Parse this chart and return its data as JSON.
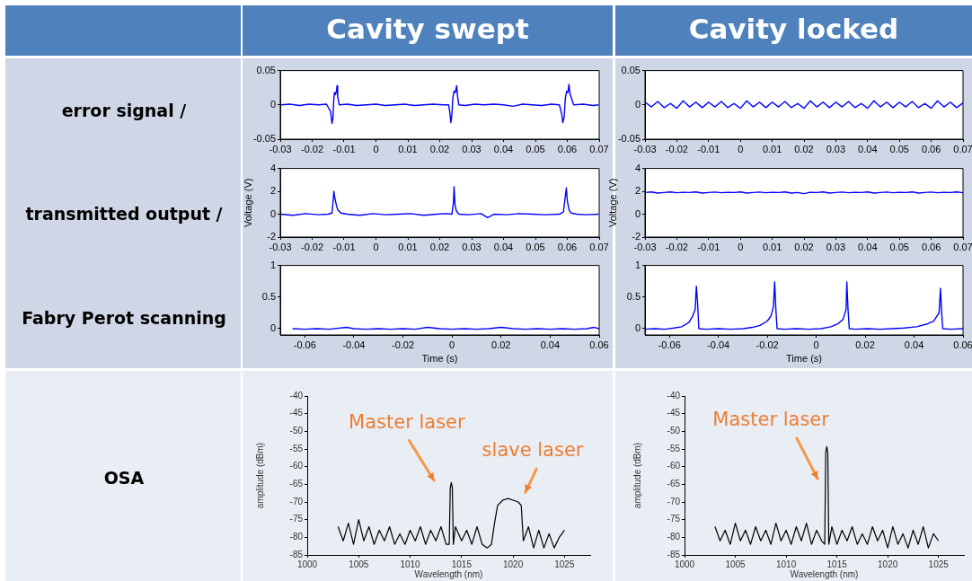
{
  "chart_data": [
    {
      "type": "other",
      "annotations": [
        "Cavity swept",
        "Cavity locked",
        "error signal /",
        "transmitted output /",
        "Fabry Perot scanning",
        "OSA"
      ]
    },
    {
      "type": "line",
      "color": "#0000ff",
      "xlim": [
        -0.03,
        0.07
      ],
      "xticks": [
        -0.03,
        -0.02,
        -0.01,
        0,
        0.01,
        0.02,
        0.03,
        0.04,
        0.05,
        0.06,
        0.07
      ],
      "ylim": [
        -0.05,
        0.05
      ],
      "yticks": [
        -0.05,
        0,
        0.05
      ],
      "x": [
        -0.0298,
        -0.027,
        -0.024,
        -0.021,
        -0.018,
        -0.0155,
        -0.0142,
        -0.0138,
        -0.0135,
        -0.0132,
        -0.013,
        -0.0127,
        -0.0124,
        -0.0122,
        -0.012,
        -0.0115,
        -0.009,
        -0.006,
        -0.003,
        0,
        0.003,
        0.006,
        0.009,
        0.012,
        0.015,
        0.018,
        0.021,
        0.0228,
        0.0232,
        0.0235,
        0.0238,
        0.0241,
        0.0245,
        0.0249,
        0.0253,
        0.0256,
        0.026,
        0.028,
        0.031,
        0.034,
        0.037,
        0.04,
        0.043,
        0.046,
        0.049,
        0.052,
        0.055,
        0.0575,
        0.0582,
        0.0586,
        0.059,
        0.0594,
        0.0598,
        0.0602,
        0.0605,
        0.0609,
        0.062,
        0.065,
        0.068,
        0.0698
      ],
      "values": [
        0,
        0.001,
        -0.001,
        0.001,
        0,
        0.001,
        -0.01,
        -0.027,
        -0.02,
        0.01,
        0.018,
        0.015,
        0.02,
        0.028,
        0.012,
        0,
        0.001,
        -0.001,
        0,
        0.001,
        -0.001,
        0,
        0.001,
        -0.001,
        0,
        0.001,
        0,
        0,
        -0.012,
        -0.026,
        -0.015,
        0.01,
        0.02,
        0.018,
        0.028,
        0.012,
        0,
        -0.001,
        0.001,
        0,
        0.001,
        0,
        -0.002,
        0.001,
        0,
        -0.001,
        0.001,
        0,
        -0.012,
        -0.026,
        -0.018,
        0.01,
        0.02,
        0.018,
        0.03,
        0.015,
        0,
        0.001,
        -0.001,
        0
      ]
    },
    {
      "type": "line",
      "color": "#0000ff",
      "xlim": [
        -0.03,
        0.07
      ],
      "xticks": [
        -0.03,
        -0.02,
        -0.01,
        0,
        0.01,
        0.02,
        0.03,
        0.04,
        0.05,
        0.06,
        0.07
      ],
      "ylim": [
        -0.05,
        0.05
      ],
      "yticks": [
        -0.05,
        0,
        0.05
      ],
      "x": [
        -0.03,
        -0.028,
        -0.026,
        -0.024,
        -0.022,
        -0.02,
        -0.018,
        -0.016,
        -0.014,
        -0.012,
        -0.01,
        -0.008,
        -0.006,
        -0.004,
        -0.002,
        0,
        0.002,
        0.004,
        0.006,
        0.008,
        0.01,
        0.012,
        0.014,
        0.016,
        0.018,
        0.02,
        0.022,
        0.024,
        0.026,
        0.028,
        0.03,
        0.032,
        0.034,
        0.036,
        0.038,
        0.04,
        0.042,
        0.044,
        0.046,
        0.048,
        0.05,
        0.052,
        0.054,
        0.056,
        0.058,
        0.06,
        0.062,
        0.064,
        0.066,
        0.068,
        0.07
      ],
      "values": [
        0.004,
        -0.003,
        0.005,
        -0.004,
        0.002,
        -0.005,
        0.006,
        -0.003,
        0.004,
        -0.004,
        0.004,
        -0.003,
        0.005,
        -0.004,
        0.002,
        -0.005,
        0.006,
        -0.003,
        0.004,
        -0.004,
        0.004,
        -0.003,
        0.005,
        -0.004,
        0.002,
        -0.005,
        0.006,
        -0.003,
        0.004,
        -0.004,
        0.004,
        -0.003,
        0.005,
        -0.004,
        0.002,
        -0.005,
        0.006,
        -0.003,
        0.004,
        -0.004,
        0.004,
        -0.003,
        0.005,
        -0.004,
        0.002,
        -0.005,
        0.006,
        -0.003,
        0.004,
        -0.004,
        0.003
      ]
    },
    {
      "type": "line",
      "color": "#0000ff",
      "ylabel": "Voltage (V)",
      "xlim": [
        -0.03,
        0.07
      ],
      "xticks": [
        -0.03,
        -0.02,
        -0.01,
        0,
        0.01,
        0.02,
        0.03,
        0.04,
        0.05,
        0.06,
        0.07
      ],
      "ylim": [
        -2,
        4
      ],
      "yticks": [
        -2,
        0,
        2,
        4
      ],
      "x": [
        -0.0298,
        -0.026,
        -0.022,
        -0.018,
        -0.015,
        -0.0138,
        -0.0134,
        -0.0132,
        -0.013,
        -0.0125,
        -0.012,
        -0.011,
        -0.009,
        -0.005,
        -0.001,
        0.003,
        0.007,
        0.011,
        0.015,
        0.019,
        0.022,
        0.0238,
        0.0243,
        0.0245,
        0.0248,
        0.0252,
        0.026,
        0.029,
        0.033,
        0.035,
        0.037,
        0.041,
        0.045,
        0.049,
        0.053,
        0.0575,
        0.0588,
        0.0593,
        0.0597,
        0.06,
        0.0605,
        0.0612,
        0.063,
        0.066,
        0.0698
      ],
      "values": [
        0,
        -0.1,
        0.05,
        -0.05,
        0,
        0.1,
        1.2,
        2.0,
        1.6,
        0.9,
        0.4,
        0.1,
        0,
        -0.1,
        0.05,
        -0.05,
        0,
        0.05,
        -0.1,
        0,
        0.05,
        0,
        1.0,
        2.4,
        0.8,
        0.3,
        0,
        -0.05,
        0.05,
        -0.3,
        0,
        -0.05,
        0.05,
        0,
        -0.05,
        0,
        0.2,
        1.4,
        2.3,
        1.2,
        0.4,
        0.1,
        0,
        -0.05,
        0
      ]
    },
    {
      "type": "line",
      "color": "#0000ff",
      "ylabel": "Voltage (V)",
      "xlim": [
        -0.03,
        0.07
      ],
      "xticks": [
        -0.03,
        -0.02,
        -0.01,
        0,
        0.01,
        0.02,
        0.03,
        0.04,
        0.05,
        0.06,
        0.07
      ],
      "ylim": [
        -2,
        4
      ],
      "yticks": [
        -2,
        0,
        2,
        4
      ],
      "x": [
        -0.03,
        -0.028,
        -0.026,
        -0.024,
        -0.022,
        -0.02,
        -0.018,
        -0.016,
        -0.014,
        -0.012,
        -0.01,
        -0.008,
        -0.006,
        -0.004,
        -0.002,
        0,
        0.002,
        0.004,
        0.006,
        0.008,
        0.01,
        0.012,
        0.014,
        0.016,
        0.018,
        0.02,
        0.022,
        0.024,
        0.026,
        0.028,
        0.03,
        0.032,
        0.034,
        0.036,
        0.038,
        0.04,
        0.042,
        0.044,
        0.046,
        0.048,
        0.05,
        0.052,
        0.054,
        0.056,
        0.058,
        0.06,
        0.062,
        0.064,
        0.066,
        0.068,
        0.07
      ],
      "values": [
        1.9,
        1.95,
        1.85,
        1.9,
        1.95,
        1.88,
        1.92,
        1.9,
        1.95,
        1.85,
        1.9,
        1.94,
        1.88,
        1.92,
        1.9,
        1.95,
        1.85,
        1.9,
        1.94,
        1.88,
        1.92,
        1.9,
        1.95,
        1.85,
        1.9,
        1.8,
        1.92,
        1.9,
        1.95,
        1.85,
        1.9,
        1.94,
        1.88,
        1.92,
        1.9,
        1.95,
        1.85,
        1.9,
        1.94,
        1.88,
        1.92,
        1.9,
        1.95,
        1.85,
        1.9,
        1.94,
        1.88,
        1.92,
        1.9,
        1.95,
        1.88
      ]
    },
    {
      "type": "line",
      "color": "#0000ff",
      "xlabel": "Time (s)",
      "xlim": [
        -0.07,
        0.06
      ],
      "xticks": [
        -0.06,
        -0.04,
        -0.02,
        0,
        0.02,
        0.04,
        0.06
      ],
      "ylim": [
        -0.1,
        1
      ],
      "yticks": [
        0,
        0.5,
        1
      ],
      "x": [
        -0.065,
        -0.06,
        -0.055,
        -0.05,
        -0.043,
        -0.04,
        -0.035,
        -0.03,
        -0.025,
        -0.02,
        -0.015,
        -0.01,
        -0.005,
        0,
        0.005,
        0.01,
        0.015,
        0.02,
        0.025,
        0.03,
        0.035,
        0.04,
        0.045,
        0.05,
        0.055,
        0.058,
        0.06
      ],
      "values": [
        0,
        -0.01,
        0,
        -0.01,
        0.02,
        0,
        -0.01,
        0,
        -0.01,
        0,
        -0.01,
        0.02,
        0,
        -0.01,
        0,
        -0.01,
        0,
        0.02,
        0,
        -0.01,
        0,
        -0.01,
        0,
        -0.01,
        0,
        0.02,
        0
      ]
    },
    {
      "type": "line",
      "color": "#0000ff",
      "xlabel": "Time (s)",
      "xlim": [
        -0.07,
        0.06
      ],
      "xticks": [
        -0.06,
        -0.04,
        -0.02,
        0,
        0.02,
        0.04,
        0.06
      ],
      "ylim": [
        -0.1,
        1
      ],
      "yticks": [
        0,
        0.5,
        1
      ],
      "x": [
        -0.07,
        -0.066,
        -0.062,
        -0.058,
        -0.055,
        -0.052,
        -0.0505,
        -0.0495,
        -0.049,
        -0.0485,
        -0.048,
        -0.045,
        -0.04,
        -0.035,
        -0.03,
        -0.026,
        -0.023,
        -0.02,
        -0.0185,
        -0.0175,
        -0.017,
        -0.0165,
        -0.016,
        -0.013,
        -0.008,
        -0.003,
        0.002,
        0.006,
        0.009,
        0.011,
        0.0122,
        0.0125,
        0.013,
        0.0135,
        0.016,
        0.021,
        0.026,
        0.031,
        0.036,
        0.041,
        0.045,
        0.048,
        0.0502,
        0.0508,
        0.0512,
        0.0517,
        0.055,
        0.06
      ],
      "values": [
        -0.01,
        0.0,
        -0.01,
        0.01,
        0.03,
        0.1,
        0.2,
        0.3,
        0.67,
        0.4,
        0.0,
        -0.01,
        0,
        -0.01,
        0,
        0.02,
        0.05,
        0.12,
        0.2,
        0.35,
        0.74,
        0.3,
        0.0,
        -0.01,
        0,
        -0.01,
        0,
        0.03,
        0.08,
        0.15,
        0.3,
        0.74,
        0.3,
        0.0,
        -0.01,
        0,
        -0.01,
        0,
        0.01,
        0.03,
        0.07,
        0.12,
        0.25,
        0.64,
        0.3,
        0.0,
        -0.01,
        0
      ]
    },
    {
      "type": "line",
      "color": "#000000",
      "xlabel": "Wavelength (nm)",
      "ylabel": "amplitude (dBm)",
      "xlim": [
        1000,
        1027.5
      ],
      "xticks": [
        1000,
        1005,
        1010,
        1015,
        1020,
        1025
      ],
      "ylim": [
        -85,
        -40
      ],
      "yticks": [
        -85,
        -80,
        -75,
        -70,
        -65,
        -60,
        -55,
        -50,
        -45,
        -40
      ],
      "annotations": [
        "Master laser",
        "slave laser"
      ],
      "x": [
        1003,
        1003.5,
        1004,
        1004.5,
        1005,
        1005.5,
        1006,
        1006.5,
        1007,
        1007.5,
        1008,
        1008.5,
        1009,
        1009.5,
        1010,
        1010.5,
        1011,
        1011.5,
        1012,
        1012.5,
        1013,
        1013.5,
        1013.8,
        1013.9,
        1014,
        1014.1,
        1014.2,
        1014.4,
        1015,
        1015.5,
        1016,
        1016.5,
        1017,
        1017.5,
        1017.9,
        1018.2,
        1018.5,
        1019,
        1019.5,
        1020,
        1020.5,
        1020.8,
        1021,
        1021.5,
        1022,
        1022.5,
        1023,
        1023.5,
        1024,
        1024.5,
        1025
      ],
      "values": [
        -77,
        -81,
        -76,
        -82,
        -75,
        -81,
        -77,
        -82,
        -78,
        -81,
        -77,
        -82,
        -79,
        -82,
        -78,
        -81,
        -77,
        -82,
        -78,
        -81,
        -77,
        -82,
        -82,
        -66,
        -64.5,
        -66,
        -82,
        -77,
        -81,
        -78,
        -82,
        -77,
        -82,
        -83,
        -82,
        -76,
        -71,
        -69.5,
        -69,
        -69.5,
        -70,
        -71,
        -81,
        -77,
        -83,
        -78,
        -83,
        -79,
        -83,
        -80,
        -78
      ]
    },
    {
      "type": "line",
      "color": "#000000",
      "xlabel": "Wavelength (nm)",
      "ylabel": "amplitude (dBm)",
      "xlim": [
        1000,
        1027.5
      ],
      "xticks": [
        1000,
        1005,
        1010,
        1015,
        1020,
        1025
      ],
      "ylim": [
        -85,
        -40
      ],
      "yticks": [
        -85,
        -80,
        -75,
        -70,
        -65,
        -60,
        -55,
        -50,
        -45,
        -40
      ],
      "annotations": [
        "Master laser"
      ],
      "x": [
        1003,
        1003.5,
        1004,
        1004.5,
        1005,
        1005.5,
        1006,
        1006.5,
        1007,
        1007.5,
        1008,
        1008.5,
        1009,
        1009.5,
        1010,
        1010.5,
        1011,
        1011.5,
        1012,
        1012.5,
        1013,
        1013.5,
        1013.8,
        1013.9,
        1014,
        1014.1,
        1014.2,
        1014.5,
        1015,
        1015.5,
        1016,
        1016.5,
        1017,
        1017.5,
        1018,
        1018.5,
        1019,
        1019.5,
        1020,
        1020.5,
        1021,
        1021.5,
        1022,
        1022.5,
        1023,
        1023.5,
        1024,
        1024.5,
        1025
      ],
      "values": [
        -77,
        -81,
        -78,
        -82,
        -76,
        -81,
        -78,
        -82,
        -77,
        -81,
        -78,
        -82,
        -76,
        -81,
        -78,
        -82,
        -77,
        -81,
        -76,
        -82,
        -78,
        -81,
        -82,
        -56,
        -54.3,
        -56,
        -82,
        -77,
        -82,
        -78,
        -81,
        -77,
        -82,
        -79,
        -82,
        -77,
        -81,
        -78,
        -83,
        -77,
        -82,
        -79,
        -83,
        -78,
        -82,
        -77,
        -83,
        -79,
        -81
      ]
    }
  ]
}
